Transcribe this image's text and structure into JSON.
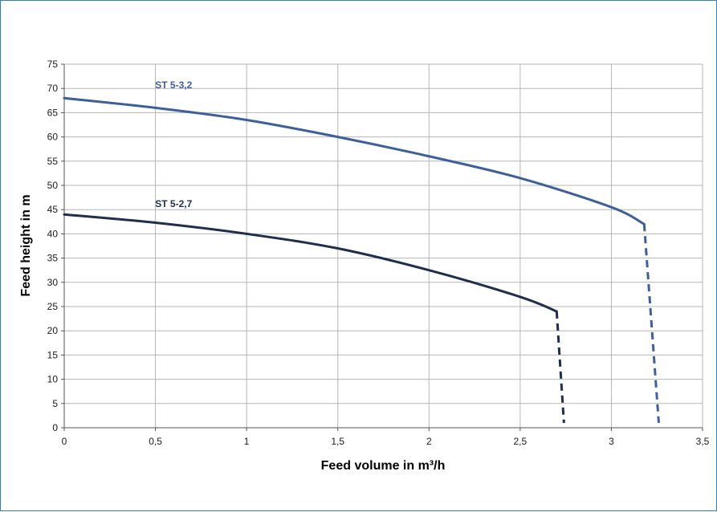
{
  "chart_data": {
    "type": "line",
    "title": "",
    "xlabel": "Feed volume in m³/h",
    "ylabel": "Feed height in m",
    "xlim": [
      0,
      3.5
    ],
    "ylim": [
      0,
      75
    ],
    "x_ticks": [
      0,
      0.5,
      1,
      1.5,
      2,
      2.5,
      3,
      3.5
    ],
    "x_tick_labels": [
      "0",
      "0,5",
      "1",
      "1,5",
      "2",
      "2,5",
      "3",
      "3,5"
    ],
    "y_ticks": [
      0,
      5,
      10,
      15,
      20,
      25,
      30,
      35,
      40,
      45,
      50,
      55,
      60,
      65,
      70,
      75
    ],
    "y_tick_labels": [
      "0",
      "5",
      "10",
      "15",
      "20",
      "25",
      "30",
      "35",
      "40",
      "45",
      "50",
      "55",
      "60",
      "65",
      "70",
      "75"
    ],
    "grid": true,
    "legend": "inline labels",
    "series": [
      {
        "name": "ST 5-3,2",
        "color": "#3d5f9a",
        "solid": [
          [
            0,
            68
          ],
          [
            0.5,
            66
          ],
          [
            1,
            63.5
          ],
          [
            1.5,
            60
          ],
          [
            2,
            56
          ],
          [
            2.5,
            51.5
          ],
          [
            3,
            45.5
          ],
          [
            3.18,
            42
          ]
        ],
        "dashed": [
          [
            3.18,
            42
          ],
          [
            3.26,
            1
          ]
        ]
      },
      {
        "name": "ST 5-2,7",
        "color": "#1f2d4f",
        "solid": [
          [
            0,
            44
          ],
          [
            0.5,
            42.3
          ],
          [
            1,
            40
          ],
          [
            1.5,
            37
          ],
          [
            2,
            32.5
          ],
          [
            2.5,
            27
          ],
          [
            2.7,
            24
          ]
        ],
        "dashed": [
          [
            2.7,
            24
          ],
          [
            2.74,
            1
          ]
        ]
      }
    ],
    "series_label_anchors": [
      [
        0.6,
        70
      ],
      [
        0.6,
        45.5
      ]
    ]
  }
}
